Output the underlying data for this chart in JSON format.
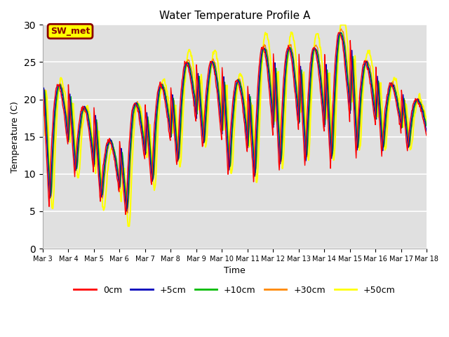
{
  "title": "Water Temperature Profile A",
  "xlabel": "Time",
  "ylabel": "Temperature (C)",
  "ylim": [
    0,
    30
  ],
  "yticks": [
    0,
    5,
    10,
    15,
    20,
    25,
    30
  ],
  "x_tick_labels": [
    "Mar 3",
    "Mar 4",
    "Mar 5",
    "Mar 6",
    "Mar 7",
    "Mar 8",
    "Mar 9",
    "Mar 10",
    "Mar 11",
    "Mar 12",
    "Mar 13",
    "Mar 14",
    "Mar 15",
    "Mar 16",
    "Mar 17",
    "Mar 18"
  ],
  "series": {
    "0cm": {
      "color": "#ff0000"
    },
    "+5cm": {
      "color": "#0000bb"
    },
    "+10cm": {
      "color": "#00bb00"
    },
    "+30cm": {
      "color": "#ff8800"
    },
    "+50cm": {
      "color": "#ffff00"
    }
  },
  "legend_label": "SW_met",
  "legend_bg": "#ffff00",
  "legend_border": "#8b0000",
  "plot_bg": "#e0e0e0",
  "grid_color": "#ffffff",
  "peak_temps": [
    22,
    19,
    14.5,
    19.5,
    22,
    25,
    25,
    22.5,
    27,
    27,
    27,
    29,
    25,
    22,
    20
  ],
  "trough_temps": [
    5.5,
    9.5,
    6,
    4,
    8,
    10.5,
    13,
    9.5,
    8.5,
    10,
    10.5,
    10.5,
    12,
    12.5,
    13
  ]
}
